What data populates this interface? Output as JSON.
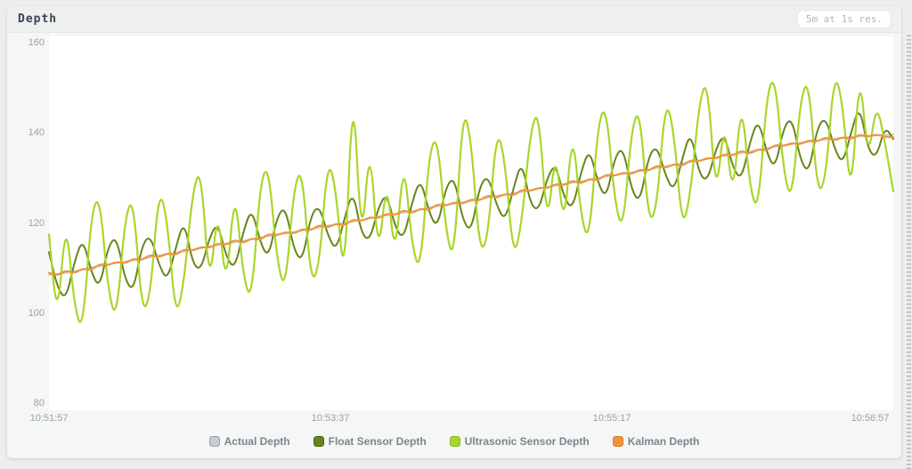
{
  "header": {
    "title": "Depth",
    "badge": "5m at 1s res."
  },
  "colors": {
    "page_bg": "#eceded",
    "card_bg": "#f5f6f6",
    "header_bg": "#eef0f0",
    "plot_bg": "#ffffff",
    "title_color": "#3b4552",
    "tick_color": "#9aa0a6",
    "legend_text": "#7d848c",
    "badge_text": "#b3b7bb"
  },
  "chart_data": {
    "type": "line",
    "title": "Depth",
    "xlabel": "",
    "ylabel": "",
    "ylim": [
      80,
      160
    ],
    "y_ticks": [
      160,
      140,
      120,
      100,
      80
    ],
    "x_ticks": [
      "10:51:57",
      "10:53:37",
      "10:55:17",
      "10:56:57"
    ],
    "x_span_seconds": 300,
    "sample_interval_seconds": 3,
    "grid": false,
    "legend_position": "bottom",
    "series": [
      {
        "name": "Actual Depth",
        "color": "#c9ccd1",
        "swatch_border": "#9da1a6",
        "width": 2,
        "values": [
          108.5,
          108.6,
          108.9,
          109.3,
          109.7,
          110.1,
          110.4,
          110.8,
          111.1,
          111.4,
          111.7,
          112.0,
          112.4,
          112.8,
          113.1,
          113.4,
          113.7,
          114.0,
          114.4,
          114.8,
          115.1,
          115.4,
          115.7,
          116.0,
          116.4,
          116.8,
          117.1,
          117.4,
          117.7,
          118.0,
          118.3,
          118.6,
          119.0,
          119.4,
          119.7,
          120.0,
          120.3,
          120.6,
          121.0,
          121.4,
          121.7,
          122.0,
          122.3,
          122.6,
          123.0,
          123.4,
          123.7,
          124.0,
          124.3,
          124.6,
          124.9,
          125.2,
          125.6,
          126.0,
          126.3,
          126.6,
          126.9,
          127.2,
          127.6,
          128.0,
          128.3,
          128.6,
          128.9,
          129.2,
          129.6,
          130.0,
          130.3,
          130.6,
          130.9,
          131.2,
          131.5,
          131.8,
          132.2,
          132.6,
          132.9,
          133.2,
          133.5,
          133.8,
          134.2,
          134.6,
          134.9,
          135.2,
          135.5,
          135.8,
          136.2,
          136.6,
          136.9,
          137.2,
          137.5,
          137.8,
          138.0,
          138.3,
          138.5,
          138.7,
          138.9,
          139.1,
          139.2,
          139.3,
          139.4,
          139.5,
          139.6
        ]
      },
      {
        "name": "Float Sensor Depth",
        "color": "#68841c",
        "swatch_border": "#4c6313",
        "width": 2,
        "values": [
          113.5,
          105.6,
          102.9,
          111.3,
          116.7,
          109.1,
          105.4,
          114.8,
          117.1,
          107.4,
          104.7,
          115.0,
          117.4,
          110.8,
          107.1,
          114.4,
          120.7,
          111.0,
          109.4,
          116.8,
          120.1,
          112.4,
          109.7,
          118.0,
          123.4,
          115.8,
          112.1,
          121.4,
          123.7,
          114.0,
          111.3,
          121.6,
          124.0,
          117.4,
          113.7,
          121.0,
          127.3,
          117.6,
          116.0,
          123.4,
          126.7,
          119.0,
          116.3,
          124.6,
          130.0,
          122.4,
          118.7,
          128.0,
          130.3,
          120.6,
          117.9,
          128.2,
          130.6,
          124.0,
          120.3,
          127.6,
          133.9,
          124.2,
          122.6,
          130.0,
          133.3,
          125.6,
          122.9,
          131.2,
          136.6,
          129.0,
          125.3,
          134.6,
          136.9,
          127.2,
          124.5,
          134.8,
          137.2,
          130.6,
          126.9,
          134.2,
          140.5,
          130.8,
          129.2,
          136.6,
          139.9,
          132.2,
          129.5,
          137.8,
          143.2,
          135.6,
          131.9,
          141.2,
          143.5,
          133.8,
          131.0,
          141.3,
          143.5,
          136.7,
          132.9,
          140.1,
          146.2,
          136.3,
          134.4,
          141.5,
          138.6
        ]
      },
      {
        "name": "Ultrasonic Sensor Depth",
        "color": "#a8d62c",
        "swatch_border": "#8ab520",
        "width": 2.2,
        "values": [
          117.5,
          97.6,
          121.9,
          101.3,
          95.7,
          122.1,
          126.4,
          104.8,
          98.1,
          121.4,
          125.7,
          100.0,
          103.4,
          127.8,
          121.1,
          98.4,
          106.7,
          127.0,
          132.4,
          104.8,
          124.1,
          104.4,
          128.7,
          108.0,
          102.4,
          128.8,
          133.1,
          111.4,
          104.7,
          128.0,
          132.3,
          106.6,
          110.0,
          134.4,
          127.7,
          105.0,
          153.3,
          113.6,
          139.0,
          111.4,
          130.7,
          111.0,
          135.3,
          114.6,
          109.0,
          135.4,
          139.7,
          118.0,
          111.3,
          145.6,
          138.9,
          113.2,
          116.6,
          141.0,
          134.3,
          111.6,
          119.9,
          140.2,
          145.6,
          118.0,
          137.3,
          117.6,
          141.9,
          121.2,
          115.6,
          142.0,
          146.3,
          124.6,
          117.9,
          141.2,
          145.5,
          119.8,
          123.2,
          147.6,
          140.9,
          118.2,
          126.5,
          146.8,
          152.2,
          124.6,
          143.9,
          124.2,
          148.5,
          127.8,
          122.2,
          148.6,
          152.9,
          131.2,
          124.5,
          147.8,
          152.0,
          126.3,
          129.5,
          153.7,
          146.9,
          124.1,
          155.2,
          133.3,
          147.0,
          138.0,
          127.0
        ]
      },
      {
        "name": "Kalman Depth",
        "color": "#f0963a",
        "swatch_border": "#d27d1c",
        "width": 2.2,
        "values": [
          108.9,
          108.3,
          109.5,
          108.8,
          109.9,
          109.5,
          110.9,
          110.6,
          111.4,
          111.0,
          112.1,
          111.7,
          113.0,
          112.3,
          113.3,
          112.8,
          114.2,
          113.8,
          114.7,
          114.4,
          115.5,
          115.1,
          116.3,
          115.5,
          116.6,
          116.2,
          117.6,
          117.2,
          118.0,
          117.6,
          118.7,
          118.3,
          119.6,
          118.9,
          119.9,
          119.4,
          120.8,
          120.4,
          121.3,
          121.0,
          122.1,
          121.7,
          122.9,
          122.1,
          123.2,
          122.8,
          124.2,
          123.8,
          124.6,
          124.2,
          125.3,
          124.9,
          126.2,
          125.5,
          126.5,
          126.0,
          127.4,
          127.0,
          127.9,
          127.6,
          128.7,
          128.3,
          129.5,
          128.7,
          129.8,
          129.4,
          130.8,
          130.4,
          131.2,
          130.8,
          131.9,
          131.5,
          132.8,
          132.1,
          133.1,
          132.6,
          134.0,
          133.6,
          134.5,
          134.2,
          135.3,
          134.9,
          136.1,
          135.3,
          136.4,
          136.0,
          137.4,
          137.0,
          137.8,
          137.4,
          138.4,
          138.0,
          139.1,
          138.2,
          139.1,
          138.5,
          139.7,
          139.1,
          139.7,
          139.1,
          139.0
        ]
      }
    ]
  }
}
